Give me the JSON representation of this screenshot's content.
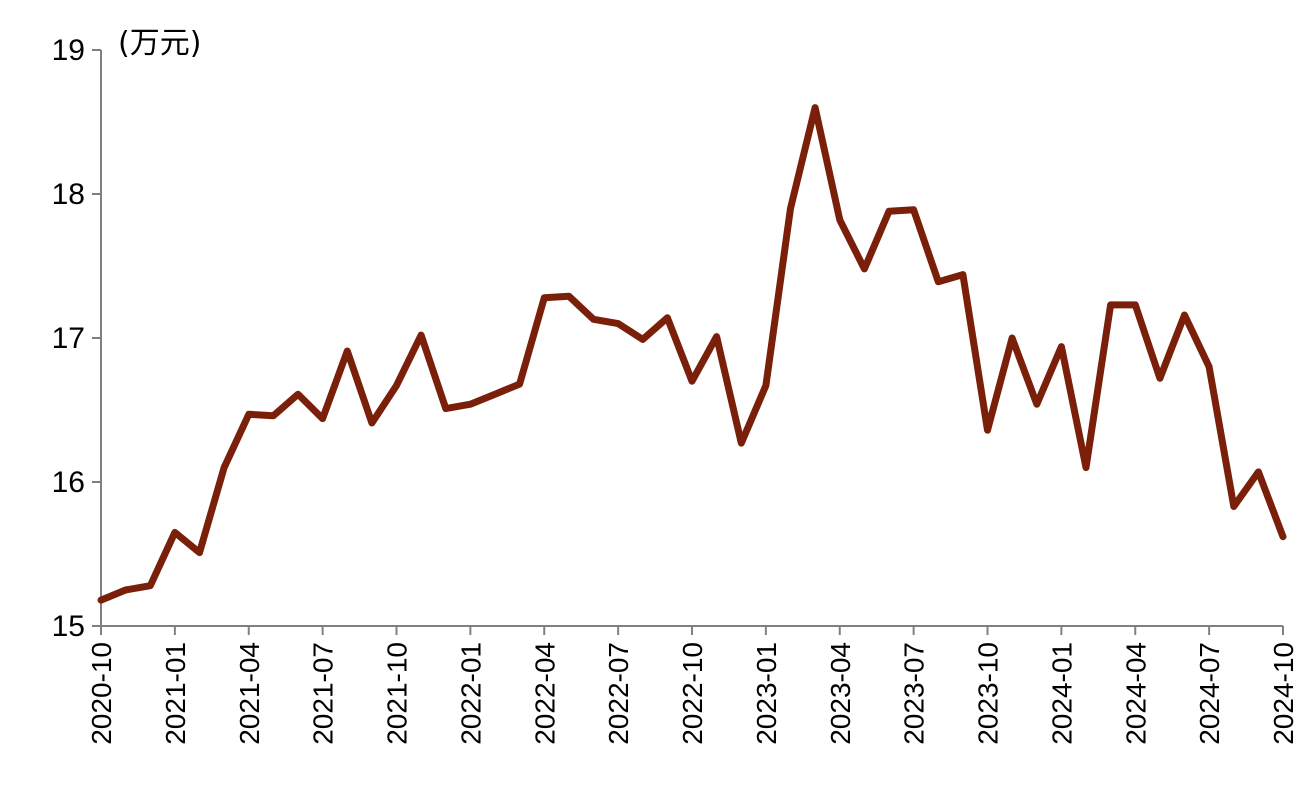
{
  "chart_data": {
    "type": "line",
    "unit_label": "(万元)",
    "ylim": [
      15,
      19
    ],
    "yticks": [
      15,
      16,
      17,
      18,
      19
    ],
    "x": [
      "2020-10",
      "2020-11",
      "2020-12",
      "2021-01",
      "2021-02",
      "2021-03",
      "2021-04",
      "2021-05",
      "2021-06",
      "2021-07",
      "2021-08",
      "2021-09",
      "2021-10",
      "2021-11",
      "2021-12",
      "2022-01",
      "2022-02",
      "2022-03",
      "2022-04",
      "2022-05",
      "2022-06",
      "2022-07",
      "2022-08",
      "2022-09",
      "2022-10",
      "2022-11",
      "2022-12",
      "2023-01",
      "2023-02",
      "2023-03",
      "2023-04",
      "2023-05",
      "2023-06",
      "2023-07",
      "2023-08",
      "2023-09",
      "2023-10",
      "2023-11",
      "2023-12",
      "2024-01",
      "2024-02",
      "2024-03",
      "2024-04",
      "2024-05",
      "2024-06",
      "2024-07",
      "2024-08",
      "2024-09",
      "2024-10"
    ],
    "xtick_labels": [
      "2020-10",
      "2021-01",
      "2021-04",
      "2021-07",
      "2021-10",
      "2022-01",
      "2022-04",
      "2022-07",
      "2022-10",
      "2023-01",
      "2023-04",
      "2023-07",
      "2023-10",
      "2024-01",
      "2024-04",
      "2024-07",
      "2024-10"
    ],
    "series": [
      {
        "color": "#7a1f0a",
        "values": [
          15.18,
          15.25,
          15.28,
          15.65,
          15.51,
          16.1,
          16.47,
          16.46,
          16.61,
          16.44,
          16.91,
          16.41,
          16.67,
          17.02,
          16.51,
          16.54,
          16.61,
          16.68,
          17.28,
          17.29,
          17.13,
          17.1,
          16.99,
          17.14,
          16.7,
          17.01,
          16.27,
          16.67,
          17.9,
          18.6,
          17.82,
          17.48,
          17.88,
          17.89,
          17.39,
          17.44,
          16.36,
          17.0,
          16.54,
          16.94,
          16.1,
          17.23,
          17.23,
          16.72,
          17.16,
          16.8,
          15.83,
          16.07,
          15.62
        ]
      }
    ],
    "grid": false,
    "legend": "none"
  }
}
